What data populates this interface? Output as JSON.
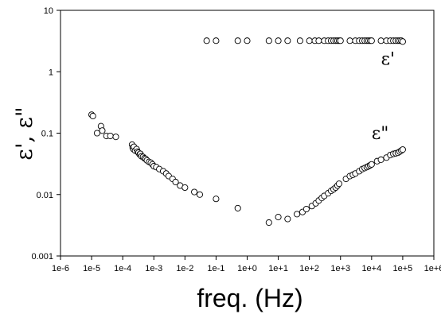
{
  "chart_data": {
    "type": "scatter",
    "xlabel": "freq. (Hz)",
    "ylabel": "ε', ε\"",
    "xscale": "log",
    "yscale": "log",
    "xlim": [
      1e-06,
      1000000.0
    ],
    "ylim": [
      0.001,
      10
    ],
    "grid": false,
    "x_tick_labels": [
      "1e-6",
      "1e-5",
      "1e-4",
      "1e-3",
      "1e-2",
      "1e-1",
      "1e+0",
      "1e+1",
      "1e+2",
      "1e+3",
      "1e+4",
      "1e+5",
      "1e+6"
    ],
    "y_tick_labels": [
      "0.001",
      "0.01",
      "0.1",
      "1",
      "10"
    ],
    "annotations": [
      {
        "text": "ε'",
        "x": 20000,
        "y": 1.3
      },
      {
        "text": "ε\"",
        "x": 10000,
        "y": 0.08
      }
    ],
    "series": [
      {
        "name": "ε'",
        "x": [
          0.05,
          0.1,
          0.5,
          1,
          5,
          10,
          20,
          50,
          100,
          150,
          200,
          300,
          400,
          500,
          600,
          700,
          800,
          900,
          1000,
          2000,
          3000,
          4000,
          5000,
          6000,
          7000,
          8000,
          9000,
          10000,
          20000,
          30000,
          40000,
          50000,
          60000,
          70000,
          80000,
          90000,
          100000
        ],
        "y": [
          3.2,
          3.2,
          3.2,
          3.2,
          3.2,
          3.2,
          3.2,
          3.2,
          3.2,
          3.2,
          3.2,
          3.2,
          3.2,
          3.2,
          3.2,
          3.2,
          3.2,
          3.2,
          3.2,
          3.2,
          3.2,
          3.2,
          3.2,
          3.2,
          3.2,
          3.2,
          3.2,
          3.2,
          3.2,
          3.2,
          3.2,
          3.2,
          3.2,
          3.2,
          3.2,
          3.2,
          3.1
        ]
      },
      {
        "name": "ε\"",
        "x": [
          1e-05,
          1.1e-05,
          1.5e-05,
          2e-05,
          2.2e-05,
          3e-05,
          4e-05,
          6e-05,
          0.0002,
          0.00021,
          0.00022,
          0.00023,
          0.00025,
          0.00028,
          0.0003,
          0.00032,
          0.00035,
          0.00037,
          0.0004,
          0.00045,
          0.0005,
          0.00055,
          0.0006,
          0.0007,
          0.0008,
          0.0009,
          0.001,
          0.0012,
          0.0015,
          0.002,
          0.0025,
          0.003,
          0.004,
          0.005,
          0.007,
          0.01,
          0.02,
          0.03,
          0.1,
          0.5,
          5,
          10,
          20,
          40,
          60,
          80,
          120,
          160,
          200,
          250,
          300,
          400,
          500,
          600,
          700,
          800,
          900,
          1500,
          2000,
          2500,
          3000,
          4000,
          5000,
          6000,
          7000,
          8000,
          9000,
          10000,
          15000,
          20000,
          30000,
          40000,
          50000,
          60000,
          70000,
          80000,
          90000,
          100000
        ],
        "y": [
          0.2,
          0.19,
          0.1,
          0.13,
          0.11,
          0.09,
          0.09,
          0.087,
          0.065,
          0.058,
          0.055,
          0.06,
          0.052,
          0.055,
          0.05,
          0.048,
          0.045,
          0.046,
          0.042,
          0.041,
          0.039,
          0.038,
          0.036,
          0.034,
          0.033,
          0.031,
          0.029,
          0.028,
          0.026,
          0.024,
          0.022,
          0.02,
          0.018,
          0.016,
          0.014,
          0.013,
          0.011,
          0.01,
          0.0085,
          0.006,
          0.0035,
          0.0043,
          0.004,
          0.0048,
          0.0052,
          0.0058,
          0.0065,
          0.0072,
          0.008,
          0.0088,
          0.0095,
          0.0105,
          0.0115,
          0.0122,
          0.013,
          0.014,
          0.015,
          0.018,
          0.02,
          0.021,
          0.022,
          0.024,
          0.026,
          0.027,
          0.028,
          0.029,
          0.03,
          0.031,
          0.035,
          0.037,
          0.04,
          0.044,
          0.046,
          0.047,
          0.048,
          0.05,
          0.052,
          0.054
        ]
      }
    ]
  }
}
